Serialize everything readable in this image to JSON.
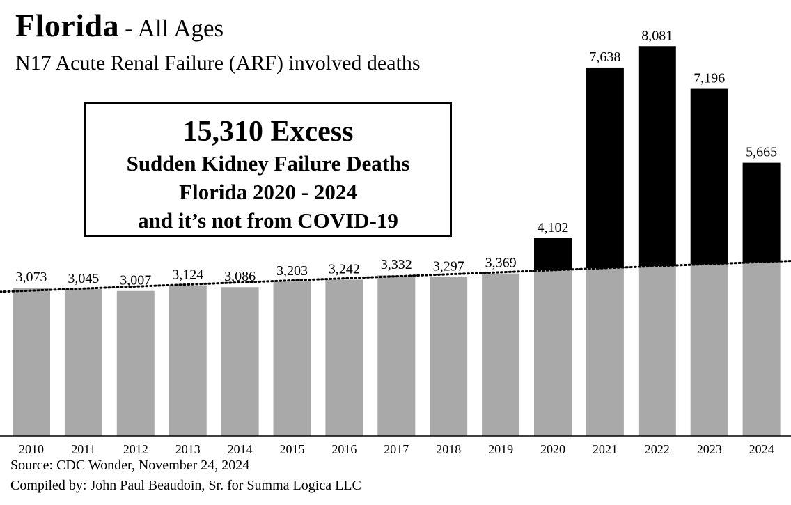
{
  "header": {
    "title": "Florida",
    "title_suffix": "- All Ages",
    "subtitle": "N17 Acute Renal Failure (ARF) involved deaths"
  },
  "callout": {
    "headline": "15,310 Excess",
    "line1": "Sudden Kidney Failure Deaths",
    "line2": "Florida 2020 - 2024",
    "line3": "and it’s not from COVID-19"
  },
  "footer": {
    "source": "Source:  CDC Wonder, November 24, 2024",
    "compiled": "Compiled by:  John Paul Beaudoin, Sr. for Summa Logica LLC"
  },
  "chart_data": {
    "type": "bar",
    "title": "Florida - All Ages",
    "subtitle": "N17 Acute Renal Failure (ARF) involved deaths",
    "xlabel": "",
    "ylabel": "",
    "ylim": [
      0,
      8850
    ],
    "grid": false,
    "categories": [
      "2010",
      "2011",
      "2012",
      "2013",
      "2014",
      "2015",
      "2016",
      "2017",
      "2018",
      "2019",
      "2020",
      "2021",
      "2022",
      "2023",
      "2024"
    ],
    "values": [
      3073,
      3045,
      3007,
      3124,
      3086,
      3203,
      3242,
      3332,
      3297,
      3369,
      4102,
      7638,
      8081,
      7196,
      5665
    ],
    "value_labels": [
      "3,073",
      "3,045",
      "3,007",
      "3,124",
      "3,086",
      "3,203",
      "3,242",
      "3,332",
      "3,297",
      "3,369",
      "4,102",
      "7,638",
      "8,081",
      "7,196",
      "5,665"
    ],
    "baseline": [
      3073,
      3045,
      3007,
      3124,
      3086,
      3203,
      3242,
      3332,
      3297,
      3369,
      3440,
      3480,
      3520,
      3560,
      3600
    ],
    "trend_line": {
      "style": "dotted",
      "start_value": 2990,
      "end_value": 3630
    },
    "colors": {
      "baseline_bar": "#a9a9a9",
      "excess_bar": "#000000",
      "trend": "#000000"
    }
  }
}
